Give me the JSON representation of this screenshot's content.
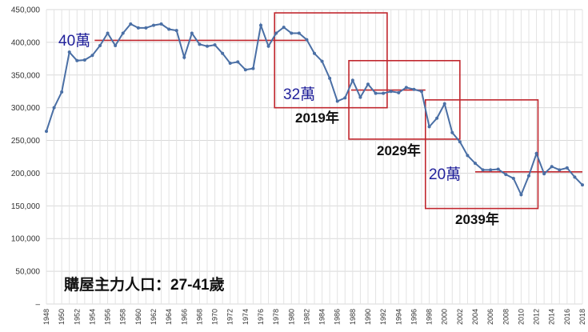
{
  "chart_data": {
    "type": "line",
    "x_range": [
      1948,
      2018
    ],
    "ylim": [
      0,
      450000
    ],
    "y_ticks": [
      {
        "value": 0,
        "label": "–"
      },
      {
        "value": 50000,
        "label": "50,000"
      },
      {
        "value": 100000,
        "label": "100,000"
      },
      {
        "value": 150000,
        "label": "150,000"
      },
      {
        "value": 200000,
        "label": "200,000"
      },
      {
        "value": 250000,
        "label": "250,000"
      },
      {
        "value": 300000,
        "label": "300,000"
      },
      {
        "value": 350000,
        "label": "350,000"
      },
      {
        "value": 400000,
        "label": "400,000"
      },
      {
        "value": 450000,
        "label": "450,000"
      }
    ],
    "x_ticks": [
      "1948",
      "1950",
      "1952",
      "1954",
      "1956",
      "1958",
      "1960",
      "1962",
      "1964",
      "1966",
      "1968",
      "1970",
      "1972",
      "1974",
      "1976",
      "1978",
      "1980",
      "1982",
      "1984",
      "1986",
      "1988",
      "1990",
      "1992",
      "1994",
      "1996",
      "1998",
      "2000",
      "2002",
      "2004",
      "2006",
      "2008",
      "2010",
      "2012",
      "2014",
      "2016",
      "2018"
    ],
    "grid": true,
    "line_color": "#4a6fa5",
    "series": [
      {
        "x": [
          1948,
          1949,
          1950,
          1951,
          1952,
          1953,
          1954,
          1955,
          1956,
          1957,
          1958,
          1959,
          1960,
          1961,
          1962,
          1963,
          1964,
          1965,
          1966,
          1967,
          1968,
          1969,
          1970,
          1971,
          1972,
          1973,
          1974,
          1975,
          1976,
          1977,
          1978,
          1979,
          1980,
          1981,
          1982,
          1983,
          1984,
          1985,
          1986,
          1987,
          1988,
          1989,
          1990,
          1991,
          1992,
          1993,
          1994,
          1995,
          1996,
          1997,
          1998,
          1999,
          2000,
          2001,
          2002,
          2003,
          2004,
          2005,
          2006,
          2007,
          2008,
          2009,
          2010,
          2011,
          2012,
          2013,
          2014,
          2015,
          2016,
          2017,
          2018
        ],
        "y": [
          264000,
          300000,
          324000,
          385000,
          372000,
          373000,
          380000,
          395000,
          414000,
          395000,
          414000,
          428000,
          422000,
          422000,
          426000,
          428000,
          420000,
          418000,
          377000,
          414000,
          397000,
          394000,
          396000,
          383000,
          368000,
          370000,
          358000,
          360000,
          426000,
          394000,
          414000,
          423000,
          414000,
          414000,
          404000,
          383000,
          371000,
          345000,
          310000,
          315000,
          342000,
          316000,
          336000,
          322000,
          322000,
          325000,
          323000,
          331000,
          328000,
          325000,
          271000,
          284000,
          306000,
          262000,
          248000,
          227000,
          215000,
          205000,
          205000,
          206000,
          198000,
          192000,
          167000,
          196000,
          230000,
          199000,
          210000,
          205000,
          208000,
          194000,
          182000
        ]
      }
    ],
    "annotations": {
      "labels": [
        "40萬",
        "32萬",
        "20萬"
      ],
      "reference_values": [
        403000,
        327000,
        202000
      ],
      "periods": [
        "2019年",
        "2029年",
        "2039年"
      ],
      "caption": "購屋主力人口：27-41歲"
    },
    "highlight_color": "#c0262d"
  }
}
